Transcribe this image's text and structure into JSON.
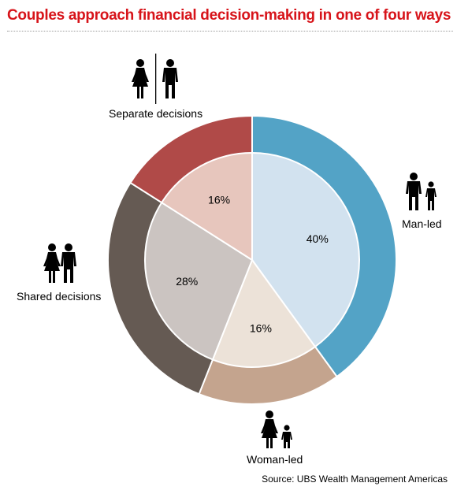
{
  "title": "Couples approach financial decision-making in one of four ways",
  "source": "Source: UBS Wealth Management Americas",
  "chart_data": {
    "type": "pie",
    "categories": [
      "Man-led",
      "Woman-led",
      "Shared decisions",
      "Separate decisions"
    ],
    "values": [
      40,
      16,
      28,
      16
    ],
    "value_labels": [
      "40%",
      "16%",
      "28%",
      "16%"
    ],
    "outer_colors": [
      "#53a3c6",
      "#c4a48e",
      "#655a53",
      "#b04a48"
    ],
    "inner_colors": [
      "#d2e2ef",
      "#ece2d8",
      "#cbc4c1",
      "#e7c6bd"
    ]
  },
  "icons": {
    "man_led": "man-with-child-icon",
    "woman_led": "woman-with-child-icon",
    "shared": "couple-icon",
    "separate": "separated-couple-icon"
  }
}
